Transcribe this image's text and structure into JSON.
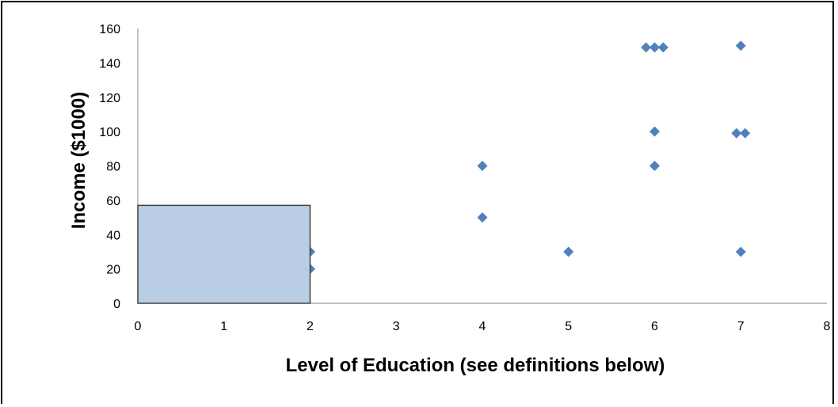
{
  "chart_data": {
    "type": "scatter",
    "title": "",
    "xlabel": "Level of Education (see definitions below)",
    "ylabel": "Income ($1000)",
    "xlim": [
      0,
      8
    ],
    "ylim": [
      0,
      160
    ],
    "x_ticks": [
      "0",
      "1",
      "2",
      "3",
      "4",
      "5",
      "6",
      "7",
      "8"
    ],
    "y_ticks": [
      "0",
      "20",
      "40",
      "60",
      "80",
      "100",
      "120",
      "140",
      "160"
    ],
    "marker_color": "#4f81bd",
    "overlay_color": "#b9cde5",
    "overlay": {
      "x": [
        0,
        2
      ],
      "y": [
        0,
        57
      ]
    },
    "grid": false,
    "legend": "none",
    "points": [
      {
        "x": 2,
        "y": 30
      },
      {
        "x": 2,
        "y": 20
      },
      {
        "x": 4,
        "y": 80
      },
      {
        "x": 4,
        "y": 50
      },
      {
        "x": 5,
        "y": 30
      },
      {
        "x": 5.9,
        "y": 149
      },
      {
        "x": 6,
        "y": 149
      },
      {
        "x": 6.1,
        "y": 149
      },
      {
        "x": 6,
        "y": 100
      },
      {
        "x": 6,
        "y": 80
      },
      {
        "x": 7,
        "y": 150
      },
      {
        "x": 6.95,
        "y": 99
      },
      {
        "x": 7.05,
        "y": 99
      },
      {
        "x": 7,
        "y": 30
      }
    ]
  }
}
